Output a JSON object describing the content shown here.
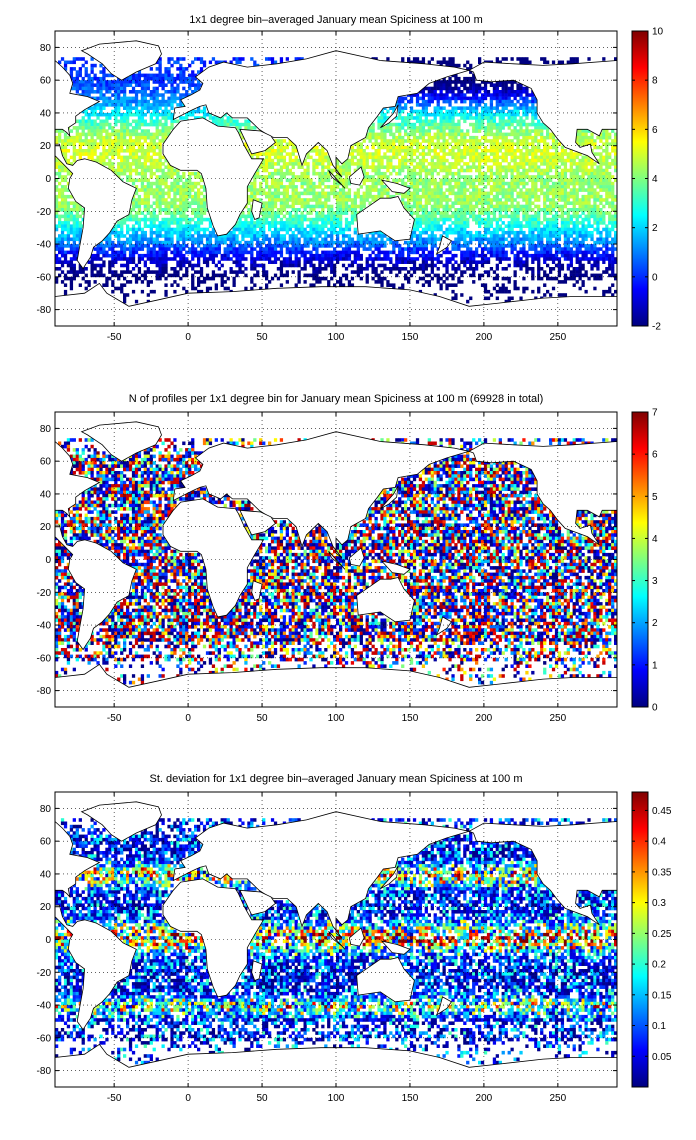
{
  "chart_data": [
    {
      "type": "heatmap",
      "title": "1x1 degree bin–averaged January mean Spiciness at 100 m",
      "xlabel": "",
      "ylabel": "",
      "xlim": [
        -90,
        290
      ],
      "ylim": [
        -90,
        90
      ],
      "xticks": [
        -50,
        0,
        50,
        100,
        150,
        200,
        250
      ],
      "yticks": [
        80,
        60,
        40,
        20,
        0,
        -20,
        -40,
        -60,
        -80
      ],
      "grid": true,
      "colormap": "jet",
      "colorbar": {
        "min": -2,
        "max": 10,
        "ticks": [
          10,
          8,
          6,
          4,
          2,
          0,
          -2
        ]
      },
      "field": "spiciness_mean"
    },
    {
      "type": "heatmap",
      "title": "N of profiles per 1x1 degree bin for January mean Spiciness at 100 m (69928 in total)",
      "xlabel": "",
      "ylabel": "",
      "xlim": [
        -90,
        290
      ],
      "ylim": [
        -90,
        90
      ],
      "xticks": [
        -50,
        0,
        50,
        100,
        150,
        200,
        250
      ],
      "yticks": [
        80,
        60,
        40,
        20,
        0,
        -20,
        -40,
        -60,
        -80
      ],
      "grid": true,
      "colormap": "jet",
      "colorbar": {
        "min": 0,
        "max": 7,
        "ticks": [
          7,
          6,
          5,
          4,
          3,
          2,
          1,
          0
        ]
      },
      "field": "profile_count"
    },
    {
      "type": "heatmap",
      "title": "St. deviation for 1x1 degree bin–averaged January mean Spiciness at 100 m",
      "xlabel": "",
      "ylabel": "",
      "xlim": [
        -90,
        290
      ],
      "ylim": [
        -90,
        90
      ],
      "xticks": [
        -50,
        0,
        50,
        100,
        150,
        200,
        250
      ],
      "yticks": [
        80,
        60,
        40,
        20,
        0,
        -20,
        -40,
        -60,
        -80
      ],
      "grid": true,
      "colormap": "jet",
      "colorbar": {
        "min": 0,
        "max": 0.48,
        "ticks": [
          0.45,
          0.4,
          0.35,
          0.3,
          0.25,
          0.2,
          0.15,
          0.1,
          0.05
        ]
      },
      "field": "spiciness_std"
    }
  ]
}
